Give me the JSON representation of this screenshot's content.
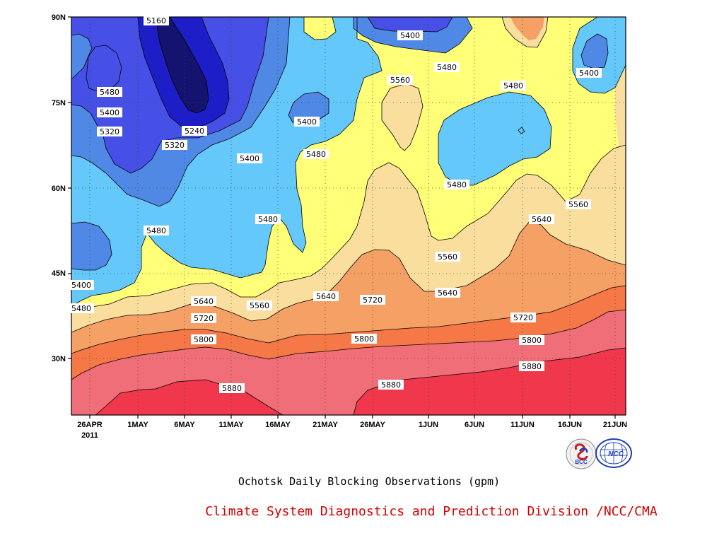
{
  "chart_data": {
    "type": "heatmap",
    "subtype": "filled-contour",
    "title": "Ochotsk Daily Blocking Observations (gpm)",
    "credit": "Climate System Diagnostics and Prediction Division /NCC/CMA",
    "x_ticks": [
      "26APR",
      "1MAY",
      "6MAY",
      "11MAY",
      "16MAY",
      "21MAY",
      "26MAY",
      "1JUN",
      "6JUN",
      "11JUN",
      "16JUN",
      "21JUN"
    ],
    "x_year_label": "2011",
    "x_range": [
      "2011-04-26",
      "2011-06-22"
    ],
    "y_ticks": [
      "30N",
      "45N",
      "60N",
      "75N",
      "90N"
    ],
    "y_range_deg_north": [
      20,
      90
    ],
    "contour_levels": [
      5160,
      5240,
      5320,
      5400,
      5480,
      5560,
      5640,
      5720,
      5800,
      5880
    ],
    "fill_colors": {
      "lt5160": "#141470",
      "5160_5240": "#1e1ec8",
      "5240_5320": "#4650e6",
      "5320_5400": "#5088e6",
      "5400_5480": "#64c8fa",
      "5480_5560": "#ffff78",
      "5560_5640": "#fade9e",
      "5640_5720": "#f5a064",
      "5720_5800": "#f57846",
      "5800_5880": "#f06e78",
      "gt5880": "#f0374b"
    },
    "contour_labels": [
      {
        "text": "5160"
      },
      {
        "text": "5400"
      },
      {
        "text": "5480"
      },
      {
        "text": "5400"
      },
      {
        "text": "5480"
      },
      {
        "text": "5560"
      },
      {
        "text": "5480"
      },
      {
        "text": "5400"
      },
      {
        "text": "5320"
      },
      {
        "text": "5240"
      },
      {
        "text": "5320"
      },
      {
        "text": "5400"
      },
      {
        "text": "5400"
      },
      {
        "text": "5480"
      },
      {
        "text": "5480"
      },
      {
        "text": "5560"
      },
      {
        "text": "5480"
      },
      {
        "text": "5480"
      },
      {
        "text": "5640"
      },
      {
        "text": "5560"
      },
      {
        "text": "5400"
      },
      {
        "text": "5480"
      },
      {
        "text": "5640"
      },
      {
        "text": "5560"
      },
      {
        "text": "5640"
      },
      {
        "text": "5720"
      },
      {
        "text": "5640"
      },
      {
        "text": "5720"
      },
      {
        "text": "5720"
      },
      {
        "text": "5800"
      },
      {
        "text": "5800"
      },
      {
        "text": "5800"
      },
      {
        "text": "5880"
      },
      {
        "text": "5880"
      },
      {
        "text": "5880"
      }
    ],
    "grid": true,
    "grid_style": "dotted"
  },
  "logos": {
    "bcc_text": "BCC",
    "ncc_text": "NCC"
  }
}
